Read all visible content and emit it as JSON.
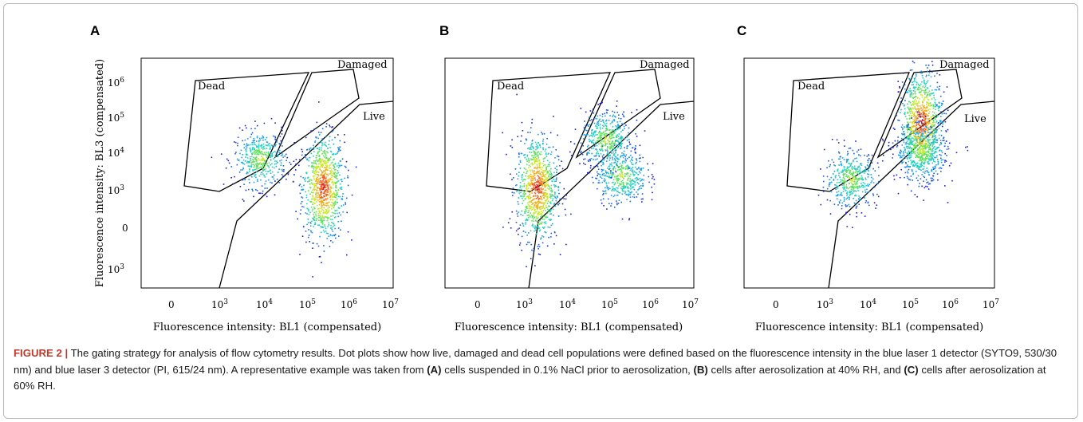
{
  "figure": {
    "caption_label": "FIGURE 2 |",
    "caption_parts": [
      "The gating strategy for analysis of flow cytometry results. Dot plots show how live, damaged and dead cell populations were defined based on the fluorescence intensity in the blue laser 1 detector (SYTO9, 530/30 nm) and blue laser 3 detector (PI, 615/24 nm). A representative example was taken from ",
      "(A)",
      " cells suspended in 0.1% NaCl prior to aerosolization, ",
      "(B)",
      " cells after aerosolization at 40% RH, and ",
      "(C)",
      " cells after aerosolization at 60% RH."
    ]
  },
  "chart_data": [
    {
      "type": "scatter",
      "panel": "A",
      "xlabel": "Fluorescence intensity: BL1 (compensated)",
      "ylabel": "Fluorescence intensity: BL3 (compensated)",
      "x_ticks": [
        "0",
        "10^3",
        "10^4",
        "10^5",
        "10^6",
        "10^7"
      ],
      "y_ticks": [
        "10^6",
        "10^5",
        "10^4",
        "10^3",
        "0",
        "10^3"
      ],
      "gates": [
        "Dead",
        "Damaged",
        "Live"
      ],
      "populations": [
        {
          "x_log": 5.4,
          "y_log": 3.5,
          "note": "dense"
        },
        {
          "x_log": 3.7,
          "y_log": 4.2
        }
      ]
    },
    {
      "type": "scatter",
      "panel": "B",
      "xlabel": "Fluorescence intensity: BL1 (compensated)",
      "ylabel": "",
      "x_ticks": [
        "0",
        "10^3",
        "10^4",
        "10^5",
        "10^6",
        "10^7"
      ],
      "y_ticks": [],
      "gates": [
        "Dead",
        "Damaged",
        "Live"
      ],
      "populations": [
        {
          "x_log": 3.0,
          "y_log": 3.5,
          "note": "dense"
        },
        {
          "x_log": 5.3,
          "y_log": 3.8
        },
        {
          "x_log": 4.9,
          "y_log": 4.7
        }
      ]
    },
    {
      "type": "scatter",
      "panel": "C",
      "xlabel": "Fluorescence intensity: BL1 (compensated)",
      "ylabel": "",
      "x_ticks": [
        "0",
        "10^3",
        "10^4",
        "10^5",
        "10^6",
        "10^7"
      ],
      "y_ticks": [],
      "gates": [
        "Dead",
        "Damaged",
        "Live"
      ],
      "populations": [
        {
          "x_log": 5.3,
          "y_log": 5.1,
          "note": "dense"
        },
        {
          "x_log": 3.4,
          "y_log": 3.7
        },
        {
          "x_log": 5.3,
          "y_log": 4.4
        }
      ]
    }
  ]
}
